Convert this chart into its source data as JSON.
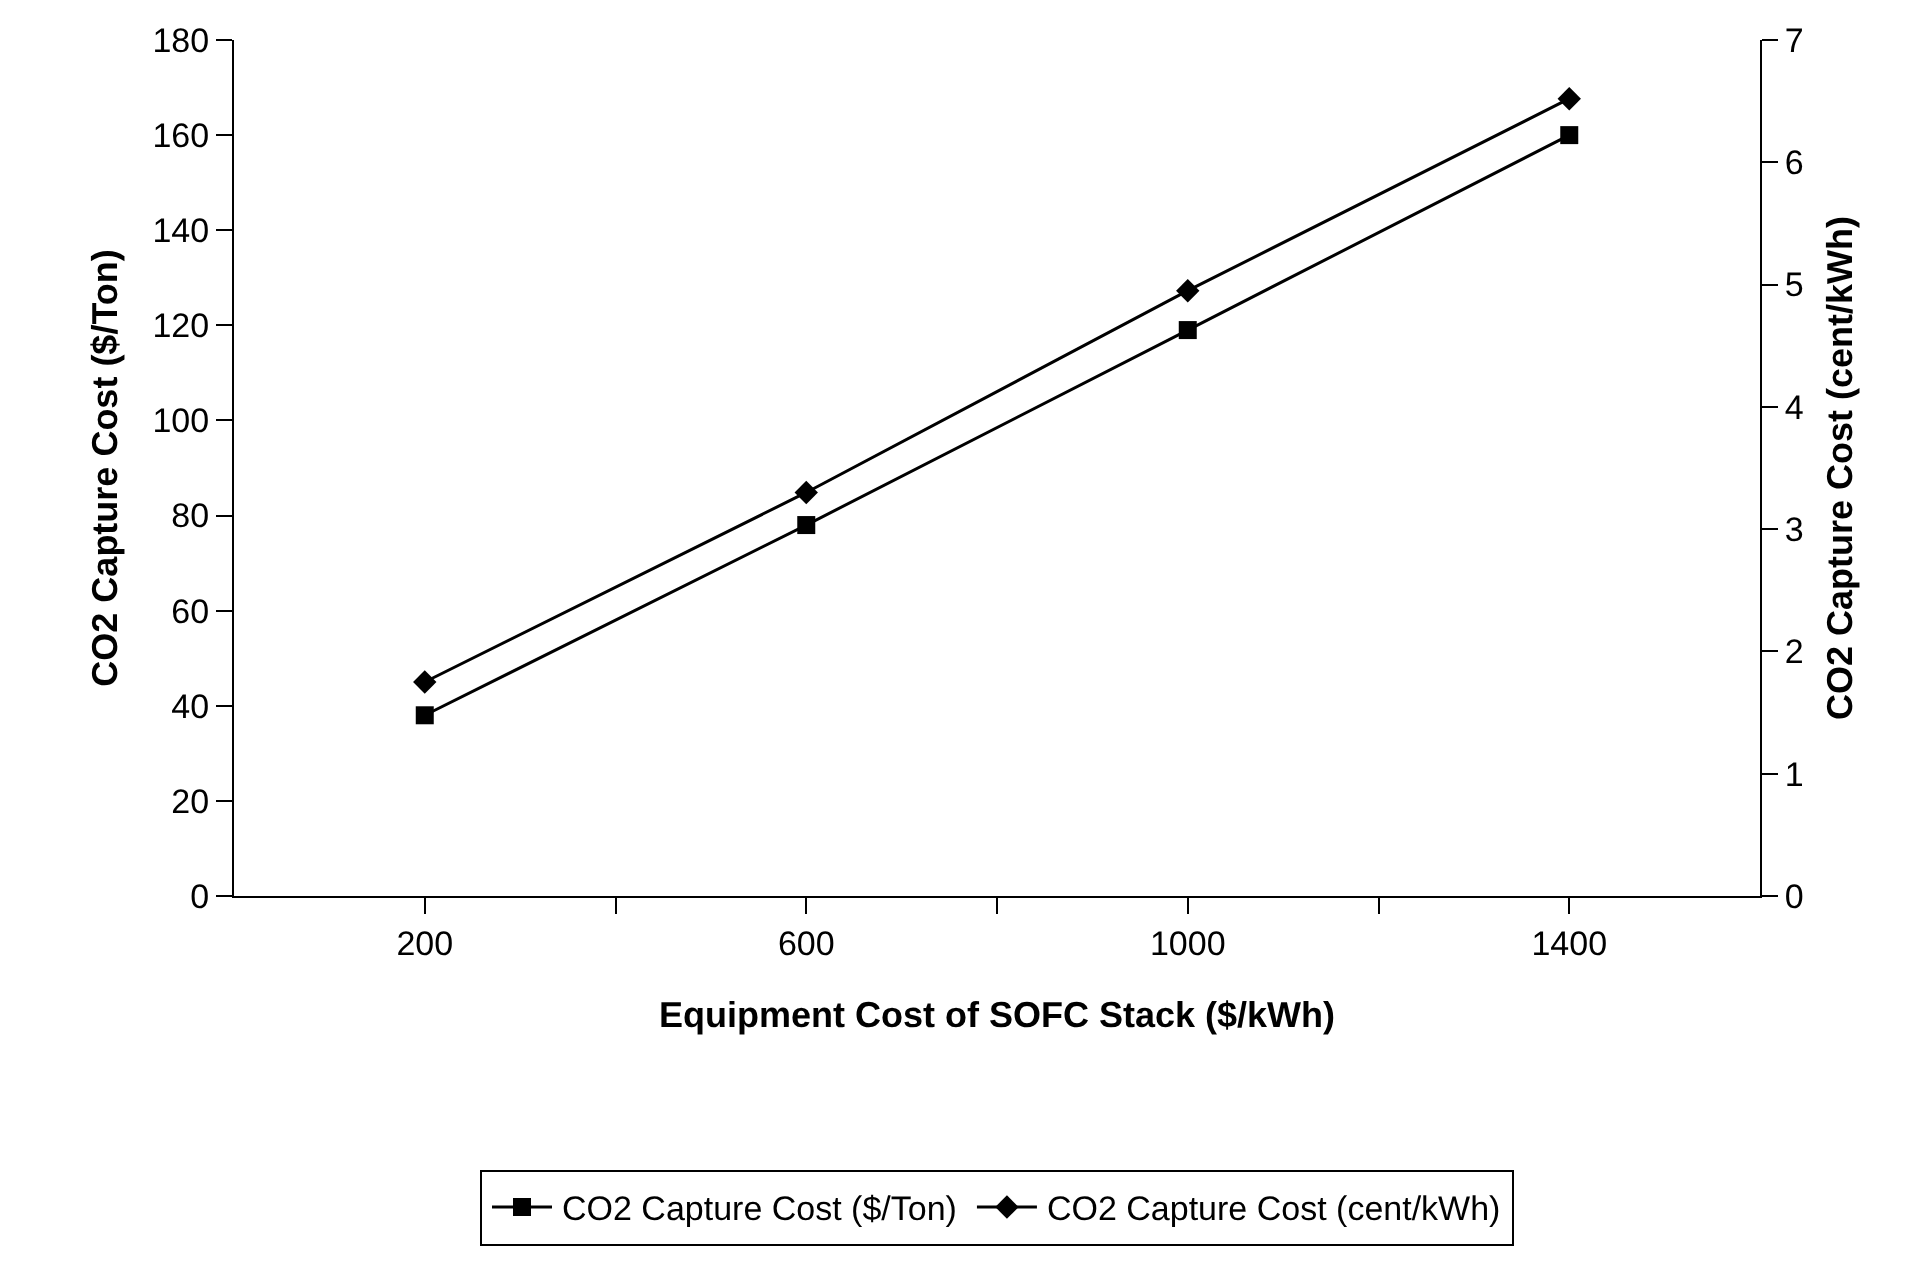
{
  "chart_data": {
    "type": "line",
    "xlabel": "Equipment Cost of SOFC Stack ($/kWh)",
    "ylabel": "CO2 Capture Cost ($/Ton)",
    "y2label": "CO2 Capture Cost (cent/kWh)",
    "x": [
      200,
      600,
      1000,
      1400
    ],
    "series": [
      {
        "name": "CO2 Capture Cost ($/Ton)",
        "color": "#000000",
        "marker": "square",
        "values": [
          38,
          78,
          119,
          160
        ]
      },
      {
        "name": "CO2 Capture Cost (cent/kWh)",
        "color": "#000000",
        "marker": "diamond",
        "axis": "y2",
        "values": [
          1.75,
          3.3,
          4.95,
          6.52
        ]
      }
    ],
    "xlim": [
      0,
      1600
    ],
    "xticks": [
      200,
      {
        "value": 400,
        "label": null
      },
      600,
      {
        "value": 800,
        "label": null
      },
      1000,
      {
        "value": 1200,
        "label": null
      },
      1400
    ],
    "ylim": [
      0,
      180
    ],
    "yticks": [
      0,
      20,
      40,
      60,
      80,
      100,
      120,
      140,
      160,
      180
    ],
    "y2lim": [
      0,
      7
    ],
    "y2ticks": [
      0,
      1,
      2,
      3,
      4,
      5,
      6,
      7
    ],
    "grid": false,
    "legend": "bottom",
    "line_style": "solid"
  }
}
